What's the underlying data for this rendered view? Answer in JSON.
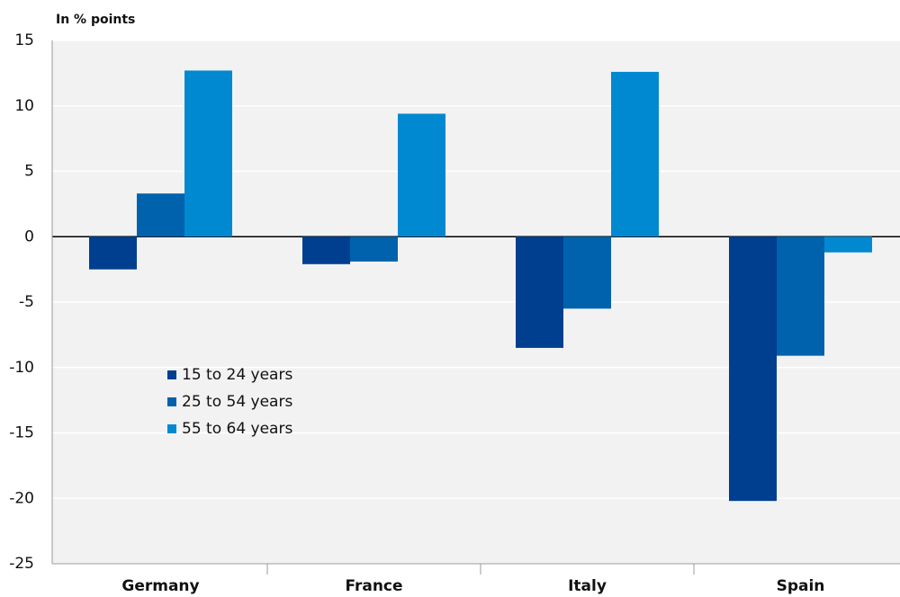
{
  "chart_data": {
    "type": "bar",
    "y_label": "In % points",
    "categories": [
      "Germany",
      "France",
      "Italy",
      "Spain"
    ],
    "series": [
      {
        "name": "15 to 24 years",
        "color": "#003f8f",
        "values": [
          -2.5,
          -2.1,
          -8.5,
          -20.2
        ]
      },
      {
        "name": "25 to 54 years",
        "color": "#0062ad",
        "values": [
          3.3,
          -1.9,
          -5.5,
          -9.1
        ]
      },
      {
        "name": "55 to 64 years",
        "color": "#0089d0",
        "values": [
          12.7,
          9.4,
          12.6,
          -1.2
        ]
      }
    ],
    "ylim": [
      -25,
      15
    ],
    "yticks": [
      -25,
      -20,
      -15,
      -10,
      -5,
      0,
      5,
      10,
      15
    ],
    "grid": true,
    "legend": "center-left"
  }
}
